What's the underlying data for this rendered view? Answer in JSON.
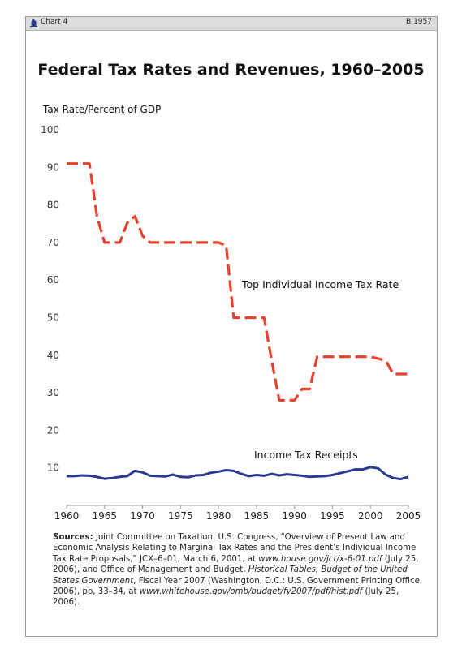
{
  "header": {
    "chart_label": "Chart 4",
    "code": "B 1957",
    "logo_icon": "heritage-bell-icon"
  },
  "chart_data": {
    "type": "line",
    "title": "Federal Tax Rates and Revenues, 1960–2005",
    "ylabel": "Tax Rate/Percent of GDP",
    "xlabel": "",
    "ylim": [
      0,
      100
    ],
    "xlim": [
      1960,
      2005
    ],
    "yticks": [
      10,
      20,
      30,
      40,
      50,
      60,
      70,
      80,
      90,
      100
    ],
    "xticks": [
      1960,
      1965,
      1970,
      1975,
      1980,
      1985,
      1990,
      1995,
      2000,
      2005
    ],
    "grid": false,
    "series": [
      {
        "name": "Top Individual Income Tax Rate",
        "color": "#e8412c",
        "style": "dashed",
        "x": [
          1960,
          1961,
          1962,
          1963,
          1964,
          1965,
          1966,
          1967,
          1968,
          1969,
          1970,
          1971,
          1972,
          1973,
          1974,
          1975,
          1976,
          1977,
          1978,
          1979,
          1980,
          1981,
          1982,
          1983,
          1984,
          1985,
          1986,
          1987,
          1988,
          1989,
          1990,
          1991,
          1992,
          1993,
          1994,
          1995,
          1996,
          1997,
          1998,
          1999,
          2000,
          2001,
          2002,
          2003,
          2004,
          2005
        ],
        "values": [
          91,
          91,
          91,
          91,
          77,
          70,
          70,
          70,
          75.25,
          77,
          71.75,
          70,
          70,
          70,
          70,
          70,
          70,
          70,
          70,
          70,
          70,
          69.13,
          50,
          50,
          50,
          50,
          50,
          38.5,
          28,
          28,
          28,
          31,
          31,
          39.6,
          39.6,
          39.6,
          39.6,
          39.6,
          39.6,
          39.6,
          39.6,
          39.1,
          38.6,
          35,
          35,
          35
        ]
      },
      {
        "name": "Income Tax Receipts",
        "color": "#2a3a8f",
        "style": "solid",
        "x": [
          1960,
          1961,
          1962,
          1963,
          1964,
          1965,
          1966,
          1967,
          1968,
          1969,
          1970,
          1971,
          1972,
          1973,
          1974,
          1975,
          1976,
          1977,
          1978,
          1979,
          1980,
          1981,
          1982,
          1983,
          1984,
          1985,
          1986,
          1987,
          1988,
          1989,
          1990,
          1991,
          1992,
          1993,
          1994,
          1995,
          1996,
          1997,
          1998,
          1999,
          2000,
          2001,
          2002,
          2003,
          2004,
          2005
        ],
        "values": [
          7.8,
          7.8,
          8.0,
          7.9,
          7.6,
          7.1,
          7.3,
          7.6,
          7.8,
          9.2,
          8.8,
          7.9,
          7.8,
          7.7,
          8.2,
          7.6,
          7.5,
          8.0,
          8.1,
          8.7,
          9.0,
          9.4,
          9.2,
          8.4,
          7.8,
          8.1,
          7.9,
          8.4,
          8.0,
          8.3,
          8.1,
          7.9,
          7.6,
          7.7,
          7.8,
          8.1,
          8.6,
          9.1,
          9.6,
          9.6,
          10.2,
          9.9,
          8.2,
          7.3,
          7.0,
          7.6
        ]
      }
    ],
    "annotations": [
      "Top Individual Income Tax Rate",
      "Income Tax Receipts"
    ]
  },
  "sources": {
    "label": "Sources:",
    "part1": " Joint Committee on Taxation, U.S. Congress, “Overview of Present Law and Economic Analysis Relating to Marginal Tax Rates and the President’s Individual Income Tax Rate Proposals,” JCX–6–01, March 6, 2001, at ",
    "url1": "www.house.gov/jct/x-6-01.pdf",
    "part2": " (July 25, 2006), and Office of Management and Budget, ",
    "italic_title": "Historical Tables, Budget of the United States Government",
    "part3": ", Fiscal Year 2007 (Washington, D.C.: U.S. Government Printing Office, 2006), pp, 33–34, at ",
    "url2": "www.whitehouse.gov/omb/budget/fy2007/pdf/hist.pdf",
    "part4": " (July 25, 2006)."
  }
}
